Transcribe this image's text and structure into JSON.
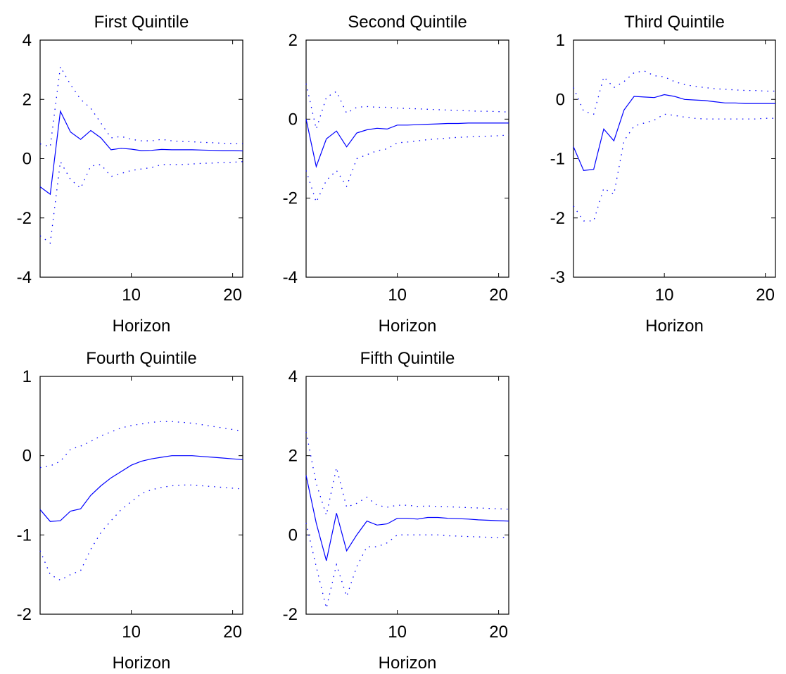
{
  "colors": {
    "line": "#0000ff",
    "axis": "#000000",
    "background": "#ffffff"
  },
  "chart_data": [
    {
      "type": "line",
      "title": "First Quintile",
      "xlabel": "Horizon",
      "ylabel": "",
      "xlim": [
        1,
        21
      ],
      "ylim": [
        -4,
        4
      ],
      "xticks": [
        10,
        20
      ],
      "yticks": [
        -4,
        -2,
        0,
        2,
        4
      ],
      "grid": false,
      "x": [
        1,
        2,
        3,
        4,
        5,
        6,
        7,
        8,
        9,
        10,
        11,
        12,
        13,
        14,
        15,
        16,
        17,
        18,
        19,
        20,
        21
      ],
      "series": [
        {
          "style": "solid",
          "values": [
            -0.95,
            -1.2,
            1.6,
            0.9,
            0.65,
            0.95,
            0.7,
            0.3,
            0.35,
            0.32,
            0.27,
            0.28,
            0.31,
            0.3,
            0.3,
            0.3,
            0.29,
            0.28,
            0.27,
            0.27,
            0.26
          ]
        },
        {
          "style": "dotted",
          "values": [
            0.5,
            0.4,
            3.1,
            2.5,
            2.0,
            1.7,
            1.2,
            0.7,
            0.75,
            0.65,
            0.6,
            0.6,
            0.65,
            0.6,
            0.58,
            0.57,
            0.55,
            0.54,
            0.52,
            0.51,
            0.5
          ]
        },
        {
          "style": "dotted",
          "values": [
            -2.6,
            -2.85,
            -0.1,
            -0.7,
            -1.0,
            -0.25,
            -0.2,
            -0.6,
            -0.5,
            -0.4,
            -0.35,
            -0.3,
            -0.2,
            -0.2,
            -0.2,
            -0.18,
            -0.16,
            -0.15,
            -0.13,
            -0.12,
            -0.1
          ]
        }
      ]
    },
    {
      "type": "line",
      "title": "Second Quintile",
      "xlabel": "Horizon",
      "ylabel": "",
      "xlim": [
        1,
        21
      ],
      "ylim": [
        -4,
        2
      ],
      "xticks": [
        10,
        20
      ],
      "yticks": [
        -4,
        -2,
        0,
        2
      ],
      "grid": false,
      "x": [
        1,
        2,
        3,
        4,
        5,
        6,
        7,
        8,
        9,
        10,
        11,
        12,
        13,
        14,
        15,
        16,
        17,
        18,
        19,
        20,
        21
      ],
      "series": [
        {
          "style": "solid",
          "values": [
            0.0,
            -1.2,
            -0.5,
            -0.3,
            -0.7,
            -0.35,
            -0.27,
            -0.23,
            -0.25,
            -0.15,
            -0.15,
            -0.14,
            -0.13,
            -0.12,
            -0.11,
            -0.11,
            -0.1,
            -0.1,
            -0.1,
            -0.1,
            -0.1
          ]
        },
        {
          "style": "dotted",
          "values": [
            0.9,
            -0.25,
            0.55,
            0.7,
            0.15,
            0.3,
            0.32,
            0.3,
            0.3,
            0.28,
            0.27,
            0.26,
            0.25,
            0.24,
            0.23,
            0.22,
            0.21,
            0.2,
            0.2,
            0.19,
            0.18
          ]
        },
        {
          "style": "dotted",
          "values": [
            -1.3,
            -2.1,
            -1.55,
            -1.3,
            -1.7,
            -1.0,
            -0.9,
            -0.8,
            -0.75,
            -0.6,
            -0.58,
            -0.55,
            -0.52,
            -0.5,
            -0.48,
            -0.46,
            -0.45,
            -0.44,
            -0.43,
            -0.42,
            -0.4
          ]
        }
      ]
    },
    {
      "type": "line",
      "title": "Third Quintile",
      "xlabel": "Horizon",
      "ylabel": "",
      "xlim": [
        1,
        21
      ],
      "ylim": [
        -3,
        1
      ],
      "xticks": [
        10,
        20
      ],
      "yticks": [
        -3,
        -2,
        -1,
        0,
        1
      ],
      "grid": false,
      "x": [
        1,
        2,
        3,
        4,
        5,
        6,
        7,
        8,
        9,
        10,
        11,
        12,
        13,
        14,
        15,
        16,
        17,
        18,
        19,
        20,
        21
      ],
      "series": [
        {
          "style": "solid",
          "values": [
            -0.8,
            -1.2,
            -1.18,
            -0.5,
            -0.7,
            -0.18,
            0.05,
            0.04,
            0.03,
            0.08,
            0.05,
            0.0,
            -0.01,
            -0.02,
            -0.04,
            -0.06,
            -0.06,
            -0.07,
            -0.07,
            -0.07,
            -0.07
          ]
        },
        {
          "style": "dotted",
          "values": [
            0.2,
            -0.2,
            -0.25,
            0.38,
            0.2,
            0.3,
            0.45,
            0.48,
            0.4,
            0.38,
            0.3,
            0.25,
            0.22,
            0.2,
            0.18,
            0.17,
            0.16,
            0.15,
            0.15,
            0.14,
            0.14
          ]
        },
        {
          "style": "dotted",
          "values": [
            -1.8,
            -2.05,
            -2.05,
            -1.5,
            -1.6,
            -0.7,
            -0.45,
            -0.4,
            -0.35,
            -0.25,
            -0.27,
            -0.3,
            -0.32,
            -0.33,
            -0.33,
            -0.33,
            -0.33,
            -0.33,
            -0.33,
            -0.32,
            -0.32
          ]
        }
      ]
    },
    {
      "type": "line",
      "title": "Fourth Quintile",
      "xlabel": "Horizon",
      "ylabel": "",
      "xlim": [
        1,
        21
      ],
      "ylim": [
        -2,
        1
      ],
      "xticks": [
        10,
        20
      ],
      "yticks": [
        -2,
        -1,
        0,
        1
      ],
      "grid": false,
      "x": [
        1,
        2,
        3,
        4,
        5,
        6,
        7,
        8,
        9,
        10,
        11,
        12,
        13,
        14,
        15,
        16,
        17,
        18,
        19,
        20,
        21
      ],
      "series": [
        {
          "style": "solid",
          "values": [
            -0.68,
            -0.83,
            -0.82,
            -0.7,
            -0.67,
            -0.5,
            -0.38,
            -0.28,
            -0.2,
            -0.12,
            -0.07,
            -0.04,
            -0.02,
            0.0,
            0.0,
            0.0,
            -0.01,
            -0.02,
            -0.03,
            -0.04,
            -0.05
          ]
        },
        {
          "style": "dotted",
          "values": [
            -0.15,
            -0.13,
            -0.07,
            0.08,
            0.12,
            0.18,
            0.25,
            0.3,
            0.35,
            0.38,
            0.4,
            0.42,
            0.43,
            0.43,
            0.42,
            0.41,
            0.39,
            0.37,
            0.35,
            0.33,
            0.31
          ]
        },
        {
          "style": "dotted",
          "values": [
            -1.2,
            -1.5,
            -1.57,
            -1.5,
            -1.45,
            -1.18,
            -0.97,
            -0.82,
            -0.68,
            -0.58,
            -0.48,
            -0.43,
            -0.4,
            -0.38,
            -0.37,
            -0.37,
            -0.38,
            -0.39,
            -0.4,
            -0.41,
            -0.42
          ]
        }
      ]
    },
    {
      "type": "line",
      "title": "Fifth Quintile",
      "xlabel": "Horizon",
      "ylabel": "",
      "xlim": [
        1,
        21
      ],
      "ylim": [
        -2,
        4
      ],
      "xticks": [
        10,
        20
      ],
      "yticks": [
        -2,
        0,
        2,
        4
      ],
      "grid": false,
      "x": [
        1,
        2,
        3,
        4,
        5,
        6,
        7,
        8,
        9,
        10,
        11,
        12,
        13,
        14,
        15,
        16,
        17,
        18,
        19,
        20,
        21
      ],
      "series": [
        {
          "style": "solid",
          "values": [
            1.5,
            0.3,
            -0.65,
            0.55,
            -0.4,
            0.0,
            0.35,
            0.25,
            0.28,
            0.42,
            0.42,
            0.4,
            0.44,
            0.44,
            0.42,
            0.41,
            0.4,
            0.38,
            0.37,
            0.36,
            0.35
          ]
        },
        {
          "style": "dotted",
          "values": [
            2.6,
            1.3,
            0.5,
            1.7,
            0.7,
            0.8,
            0.95,
            0.75,
            0.7,
            0.75,
            0.75,
            0.72,
            0.73,
            0.72,
            0.71,
            0.7,
            0.69,
            0.68,
            0.67,
            0.66,
            0.65
          ]
        },
        {
          "style": "dotted",
          "values": [
            0.3,
            -0.8,
            -1.85,
            -0.75,
            -1.55,
            -0.8,
            -0.3,
            -0.3,
            -0.2,
            0.0,
            0.0,
            0.0,
            0.0,
            0.0,
            -0.02,
            -0.03,
            -0.04,
            -0.05,
            -0.06,
            -0.07,
            -0.07
          ]
        }
      ]
    }
  ]
}
